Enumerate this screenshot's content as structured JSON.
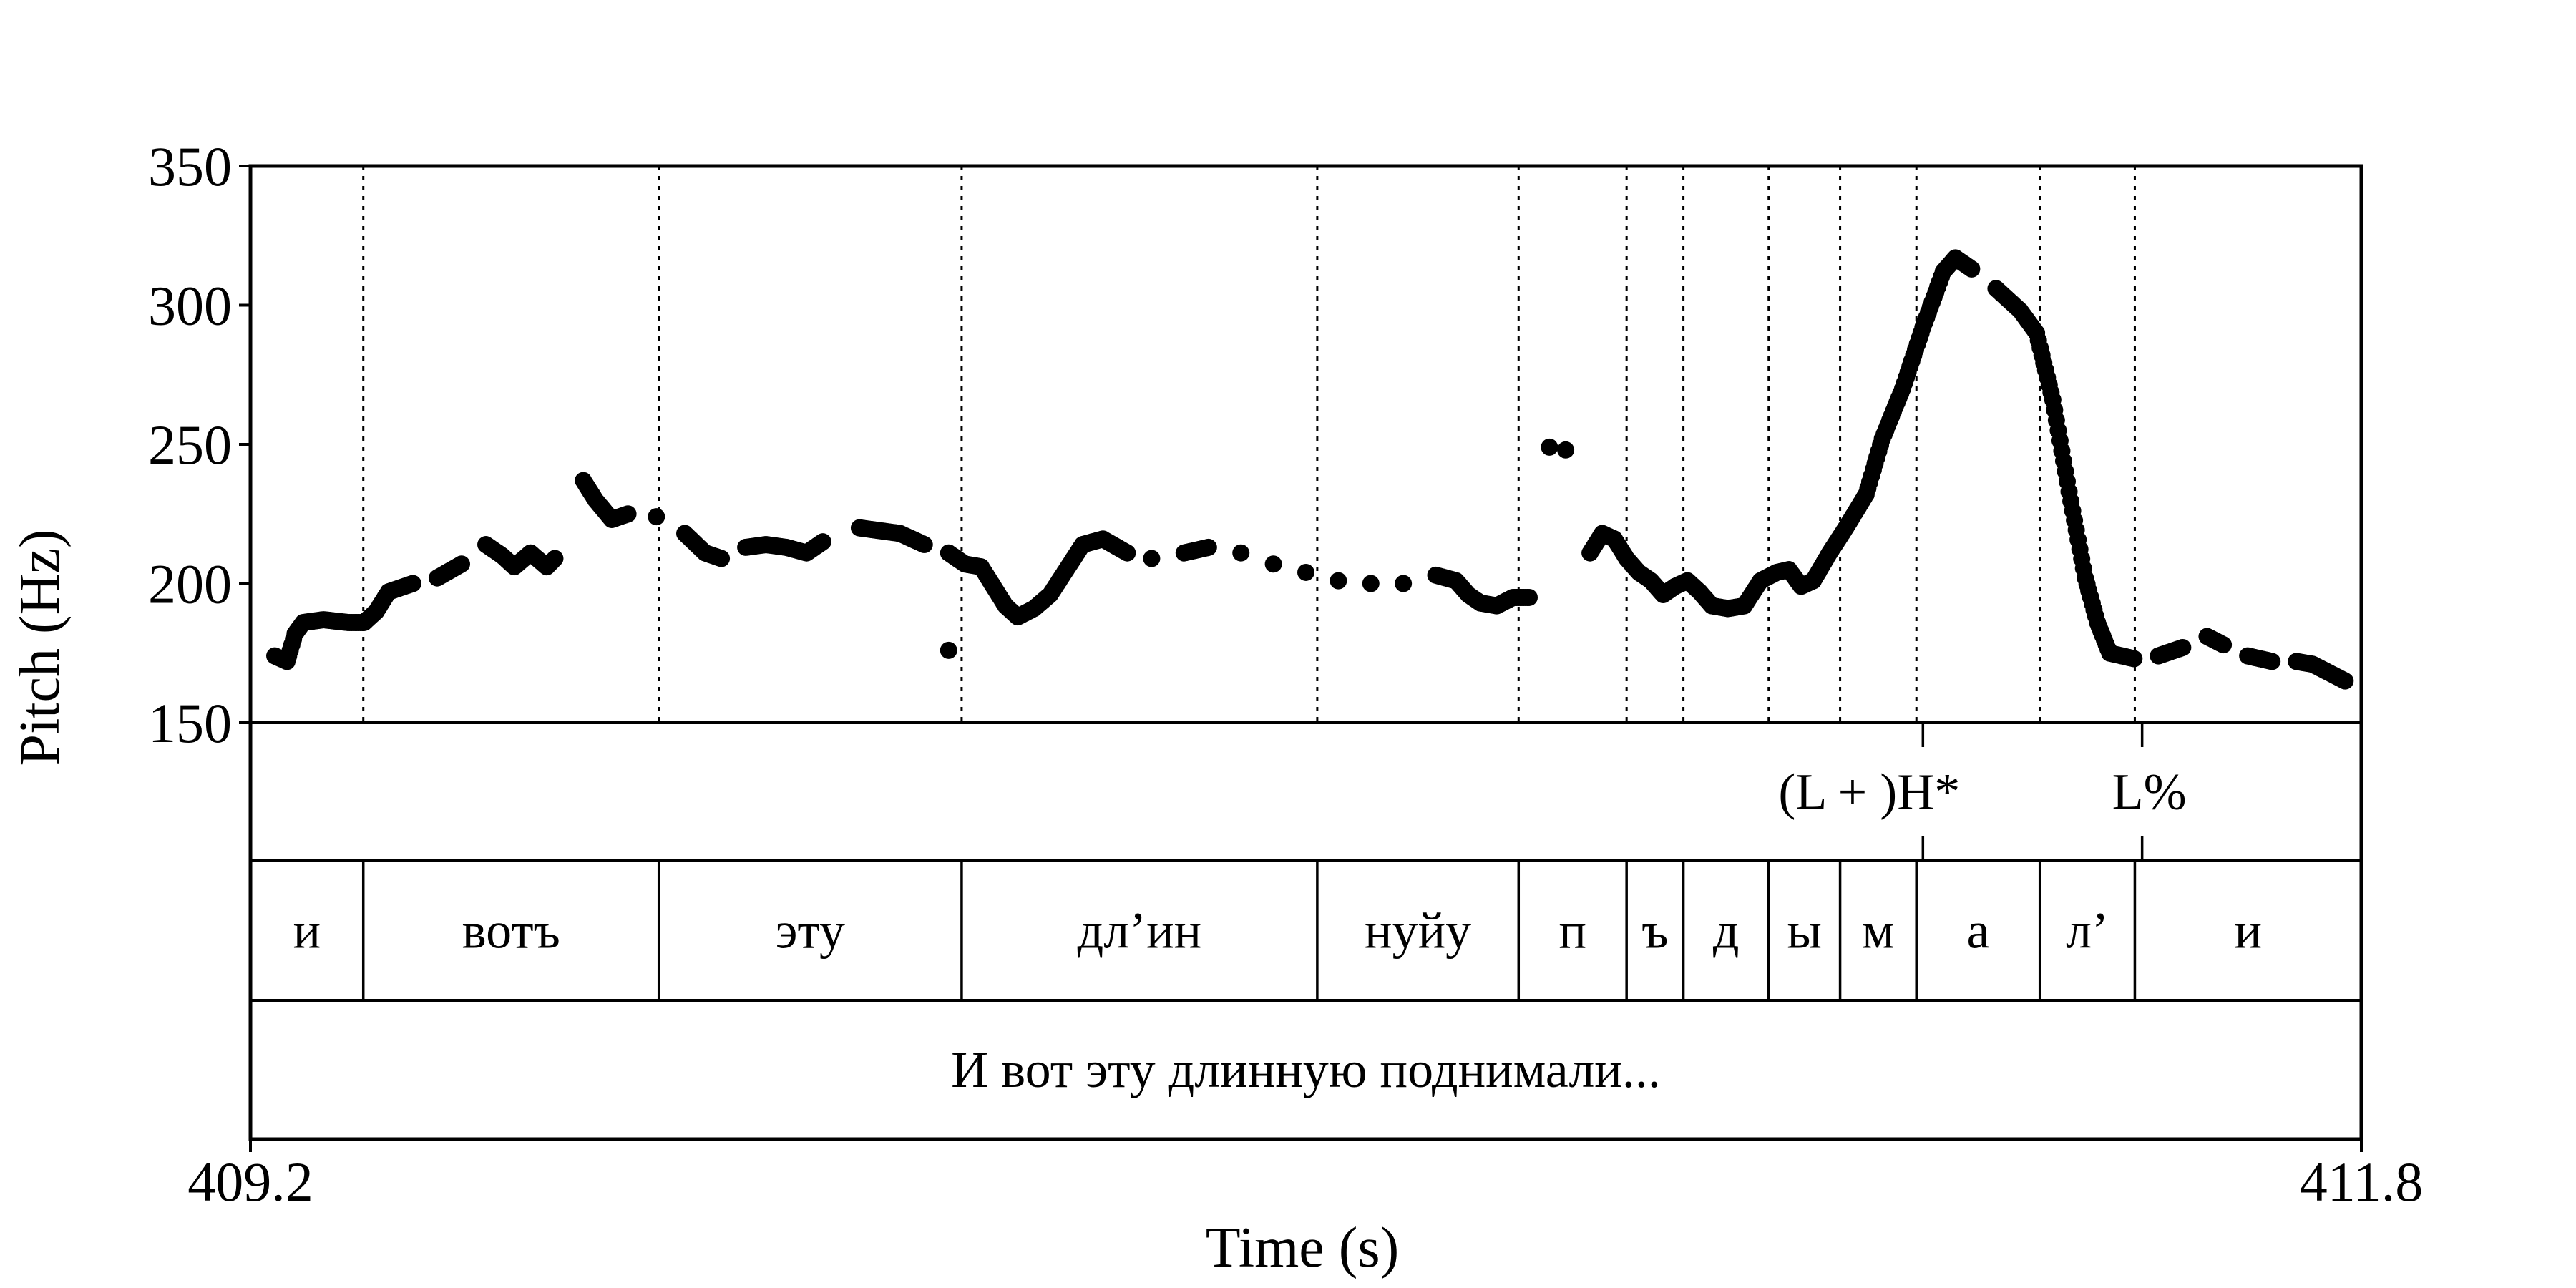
{
  "chart_data": {
    "type": "scatter",
    "xlabel": "Time (s)",
    "ylabel": "Pitch (Hz)",
    "xlim": [
      409.2,
      411.8
    ],
    "ylim": [
      150,
      350
    ],
    "x_tick_labels": [
      "409.2",
      "411.8"
    ],
    "y_tick_labels": [
      "150",
      "200",
      "250",
      "300",
      "350"
    ],
    "y_ticks": [
      150,
      200,
      250,
      300,
      350
    ],
    "grid": false,
    "marker_color": "#000000",
    "pitch_anchors": [
      [
        409.23,
        174
      ],
      [
        409.245,
        172
      ],
      [
        409.255,
        182
      ],
      [
        409.265,
        186
      ],
      [
        409.29,
        187
      ],
      [
        409.32,
        186
      ],
      [
        409.34,
        186
      ],
      [
        409.355,
        190
      ],
      [
        409.37,
        197
      ],
      [
        409.4,
        200
      ],
      [
        409.43,
        202
      ],
      [
        409.46,
        207
      ],
      [
        409.49,
        214
      ],
      [
        409.51,
        210
      ],
      [
        409.525,
        206
      ],
      [
        409.545,
        211
      ],
      [
        409.565,
        206
      ],
      [
        409.575,
        209
      ],
      [
        409.61,
        237
      ],
      [
        409.625,
        230
      ],
      [
        409.645,
        223
      ],
      [
        409.665,
        225
      ],
      [
        409.7,
        224
      ],
      [
        409.735,
        218
      ],
      [
        409.76,
        211
      ],
      [
        409.78,
        209
      ],
      [
        409.81,
        213
      ],
      [
        409.835,
        214
      ],
      [
        409.86,
        213
      ],
      [
        409.885,
        211
      ],
      [
        409.905,
        215
      ],
      [
        409.95,
        220
      ],
      [
        409.975,
        219
      ],
      [
        410.0,
        218
      ],
      [
        410.03,
        214
      ],
      [
        410.06,
        211
      ],
      [
        410.08,
        207
      ],
      [
        410.1,
        206
      ],
      [
        410.115,
        199
      ],
      [
        410.13,
        192
      ],
      [
        410.145,
        188
      ],
      [
        410.165,
        191
      ],
      [
        410.185,
        196
      ],
      [
        410.205,
        205
      ],
      [
        410.225,
        214
      ],
      [
        410.25,
        216
      ],
      [
        410.28,
        211
      ],
      [
        410.31,
        209
      ],
      [
        410.35,
        211
      ],
      [
        410.38,
        213
      ],
      [
        410.42,
        211
      ],
      [
        410.46,
        207
      ],
      [
        410.5,
        204
      ],
      [
        410.54,
        201
      ],
      [
        410.58,
        200
      ],
      [
        410.62,
        200
      ],
      [
        410.66,
        203
      ],
      [
        410.685,
        201
      ],
      [
        410.7,
        196
      ],
      [
        410.715,
        193
      ],
      [
        410.735,
        192
      ],
      [
        410.755,
        195
      ],
      [
        410.775,
        195
      ],
      [
        410.85,
        211
      ],
      [
        410.865,
        218
      ],
      [
        410.88,
        216
      ],
      [
        410.895,
        209
      ],
      [
        410.91,
        204
      ],
      [
        410.925,
        201
      ],
      [
        410.94,
        196
      ],
      [
        410.955,
        199
      ],
      [
        410.97,
        201
      ],
      [
        410.985,
        197
      ],
      [
        411.0,
        192
      ],
      [
        411.02,
        191
      ],
      [
        411.04,
        192
      ],
      [
        411.06,
        201
      ],
      [
        411.08,
        204
      ],
      [
        411.095,
        205
      ],
      [
        411.11,
        199
      ],
      [
        411.125,
        201
      ],
      [
        411.145,
        211
      ],
      [
        411.165,
        220
      ],
      [
        411.19,
        232
      ],
      [
        411.21,
        252
      ],
      [
        411.235,
        270
      ],
      [
        411.26,
        292
      ],
      [
        411.285,
        312
      ],
      [
        411.3,
        317
      ],
      [
        411.32,
        313
      ],
      [
        411.35,
        306
      ],
      [
        411.38,
        298
      ],
      [
        411.4,
        290
      ],
      [
        411.42,
        266
      ],
      [
        411.44,
        233
      ],
      [
        411.46,
        202
      ],
      [
        411.475,
        186
      ],
      [
        411.49,
        175
      ],
      [
        411.52,
        173
      ],
      [
        411.55,
        174
      ],
      [
        411.58,
        177
      ],
      [
        411.61,
        181
      ],
      [
        411.63,
        178
      ],
      [
        411.66,
        174
      ],
      [
        411.69,
        172
      ],
      [
        411.72,
        172
      ],
      [
        411.74,
        171
      ],
      [
        411.76,
        168
      ],
      [
        411.78,
        165
      ]
    ],
    "outliers": [
      [
        410.06,
        176
      ],
      [
        410.8,
        249
      ],
      [
        410.82,
        248
      ]
    ],
    "tiers": [
      {
        "name": "tones",
        "points": [
          {
            "time": 411.26,
            "label": "(L + )H*"
          },
          {
            "time": 411.53,
            "label": "L%"
          }
        ]
      },
      {
        "name": "segments",
        "intervals": [
          {
            "start": 409.2,
            "end": 409.339,
            "label": "и"
          },
          {
            "start": 409.339,
            "end": 409.703,
            "label": "вотъ"
          },
          {
            "start": 409.703,
            "end": 410.076,
            "label": "эту"
          },
          {
            "start": 410.076,
            "end": 410.514,
            "label": "дл’ин"
          },
          {
            "start": 410.514,
            "end": 410.762,
            "label": "нуйу"
          },
          {
            "start": 410.762,
            "end": 410.895,
            "label": "п"
          },
          {
            "start": 410.895,
            "end": 410.965,
            "label": "ъ"
          },
          {
            "start": 410.965,
            "end": 411.07,
            "label": "д"
          },
          {
            "start": 411.07,
            "end": 411.158,
            "label": "ы"
          },
          {
            "start": 411.158,
            "end": 411.252,
            "label": "м"
          },
          {
            "start": 411.252,
            "end": 411.404,
            "label": "а"
          },
          {
            "start": 411.404,
            "end": 411.521,
            "label": "л’"
          },
          {
            "start": 411.521,
            "end": 411.8,
            "label": "и"
          }
        ]
      },
      {
        "name": "utterance",
        "intervals": [
          {
            "start": 409.2,
            "end": 411.8,
            "label": "И вот эту длинную поднимали..."
          }
        ]
      }
    ]
  }
}
